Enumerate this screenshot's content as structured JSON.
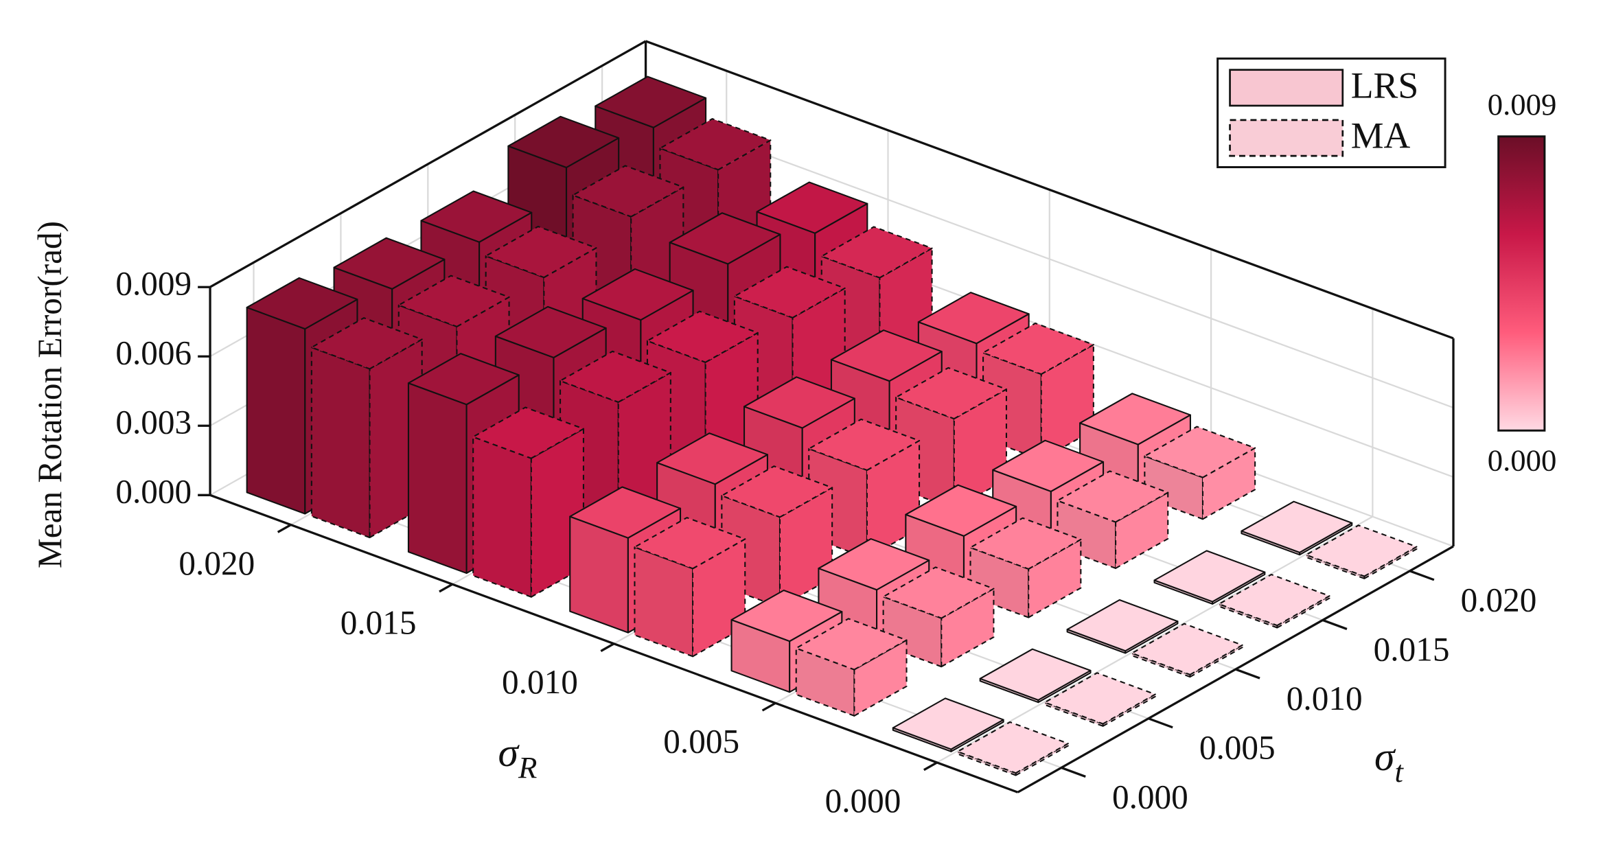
{
  "chart_data": {
    "type": "bar3d",
    "zlabel": "Mean Rotation Error(rad)",
    "xlabel": {
      "symbol": "σ",
      "subscript": "R"
    },
    "ylabel": {
      "symbol": "σ",
      "subscript": "t"
    },
    "x": [
      0.0,
      0.005,
      0.01,
      0.015,
      0.02
    ],
    "y": [
      0.0,
      0.005,
      0.01,
      0.015,
      0.02
    ],
    "xlim": [
      -0.0025,
      0.0225
    ],
    "ylim": [
      -0.0025,
      0.0225
    ],
    "zlim": [
      0,
      0.009
    ],
    "xticks": [
      {
        "value": 0,
        "label": "0.000"
      },
      0.005,
      {
        "value": 0.01,
        "label": "0.010"
      },
      0.015,
      {
        "value": 0.02,
        "label": "0.020"
      }
    ],
    "yticks": [
      {
        "value": 0,
        "label": "0.000"
      },
      0.005,
      {
        "value": 0.01,
        "label": "0.010"
      },
      0.015,
      {
        "value": 0.02,
        "label": "0.020"
      }
    ],
    "zticks": [
      {
        "value": 0,
        "label": "0.000"
      },
      0.003,
      0.006,
      0.009
    ],
    "grid": true,
    "series": [
      {
        "name": "LRS",
        "color": "#f8c6d1",
        "line_style": "solid",
        "values": [
          [
            0.0001,
            0.0001,
            0.0001,
            0.0001,
            0.0001
          ],
          [
            0.0022,
            0.0023,
            0.0025,
            0.0023,
            0.0022
          ],
          [
            0.0041,
            0.0043,
            0.0046,
            0.0045,
            0.004
          ],
          [
            0.0073,
            0.0072,
            0.0067,
            0.007,
            0.0062
          ],
          [
            0.008,
            0.0076,
            0.0075,
            0.0086,
            0.0082
          ]
        ]
      },
      {
        "name": "MA",
        "color": "#f9ccd6",
        "line_style": "dashed",
        "values": [
          [
            0.0001,
            0.0001,
            0.0001,
            0.0001,
            0.0001
          ],
          [
            0.002,
            0.0021,
            0.0021,
            0.002,
            0.0018
          ],
          [
            0.0038,
            0.0039,
            0.0038,
            0.0039,
            0.0037
          ],
          [
            0.006,
            0.0063,
            0.0059,
            0.0057,
            0.0053
          ],
          [
            0.0073,
            0.007,
            0.007,
            0.0075,
            0.0074
          ]
        ]
      }
    ],
    "legend": "upper right",
    "colormap": [
      "#ffd9e3",
      "#ff5c7c",
      "#c81848",
      "#6b0e27"
    ],
    "clim": [
      0,
      0.009
    ],
    "cticks": [
      {
        "value": 0,
        "label": "0.000"
      },
      0.009
    ]
  }
}
